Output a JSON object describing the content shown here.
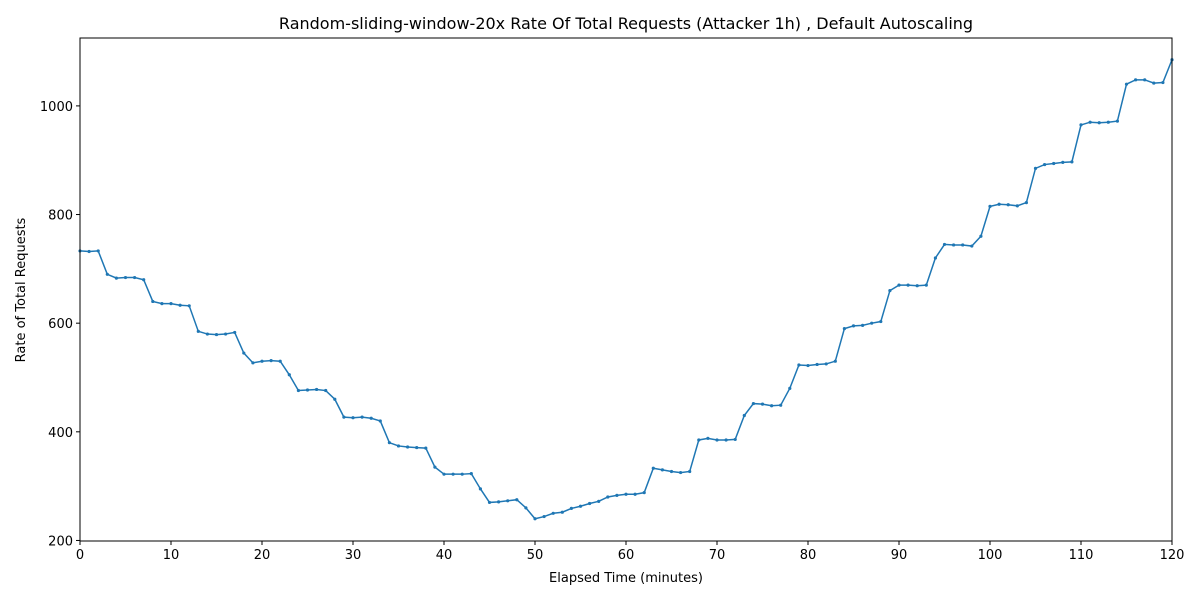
{
  "chart_data": {
    "type": "line",
    "title": "Random-sliding-window-20x Rate Of Total Requests (Attacker 1h) , Default Autoscaling",
    "x_label": "Elapsed Time (minutes)",
    "y_label": "Rate of Total Requests",
    "x": [
      0,
      1,
      2,
      3,
      4,
      5,
      6,
      7,
      8,
      9,
      10,
      11,
      12,
      13,
      14,
      15,
      16,
      17,
      18,
      19,
      20,
      21,
      22,
      23,
      24,
      25,
      26,
      27,
      28,
      29,
      30,
      31,
      32,
      33,
      34,
      35,
      36,
      37,
      38,
      39,
      40,
      41,
      42,
      43,
      44,
      45,
      46,
      47,
      48,
      49,
      50,
      51,
      52,
      53,
      54,
      55,
      56,
      57,
      58,
      59,
      60,
      61,
      62,
      63,
      64,
      65,
      66,
      67,
      68,
      69,
      70,
      71,
      72,
      73,
      74,
      75,
      76,
      77,
      78,
      79,
      80,
      81,
      82,
      83,
      84,
      85,
      86,
      87,
      88,
      89,
      90,
      91,
      92,
      93,
      94,
      95,
      96,
      97,
      98,
      99,
      100,
      101,
      102,
      103,
      104,
      105,
      106,
      107,
      108,
      109,
      110,
      111,
      112,
      113,
      114,
      115,
      116,
      117,
      118,
      119,
      120
    ],
    "series": [
      {
        "name": "Rate of Total Requests",
        "color": "#1f77b4",
        "values": [
          733,
          732,
          733,
          690,
          683,
          684,
          684,
          680,
          640,
          636,
          636,
          633,
          632,
          585,
          580,
          579,
          580,
          583,
          545,
          527,
          530,
          531,
          530,
          505,
          476,
          477,
          478,
          476,
          460,
          427,
          426,
          427,
          425,
          420,
          380,
          374,
          372,
          371,
          370,
          335,
          322,
          322,
          322,
          323,
          295,
          270,
          271,
          273,
          275,
          260,
          240,
          244,
          250,
          252,
          259,
          263,
          268,
          272,
          280,
          283,
          285,
          285,
          288,
          333,
          330,
          327,
          325,
          327,
          385,
          388,
          385,
          385,
          386,
          430,
          452,
          451,
          448,
          449,
          480,
          523,
          522,
          524,
          525,
          530,
          590,
          595,
          596,
          600,
          603,
          660,
          670,
          670,
          669,
          670,
          720,
          745,
          744,
          744,
          742,
          760,
          815,
          819,
          818,
          816,
          822,
          885,
          892,
          894,
          896,
          897,
          965,
          970,
          969,
          970,
          972,
          1040,
          1048,
          1048,
          1042,
          1043,
          1085
        ]
      }
    ],
    "xlim": [
      0,
      120
    ],
    "ylim": [
      199,
      1125
    ],
    "xticks": [
      0,
      10,
      20,
      30,
      40,
      50,
      60,
      70,
      80,
      90,
      100,
      110,
      120
    ],
    "yticks": [
      200,
      400,
      600,
      800,
      1000
    ]
  }
}
